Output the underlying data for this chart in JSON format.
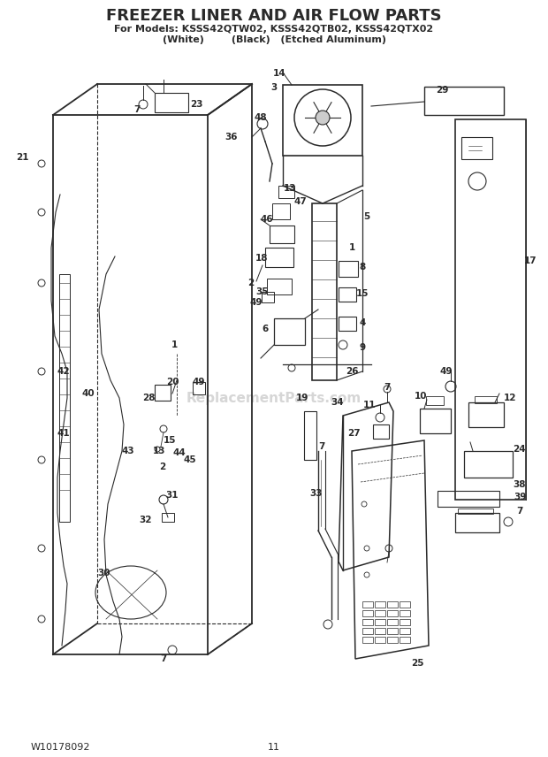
{
  "title": "FREEZER LINER AND AIR FLOW PARTS",
  "subtitle1": "For Models: KSSS42QTW02, KSSS42QTB02, KSSS42QTX02",
  "subtitle2": "(White)        (Black)   (Etched Aluminum)",
  "footer_left": "W10178092",
  "footer_center": "11",
  "watermark": "ReplacementParts.com",
  "bg_color": "#ffffff",
  "line_color": "#2a2a2a",
  "figsize": [
    6.2,
    8.56
  ],
  "dpi": 100
}
